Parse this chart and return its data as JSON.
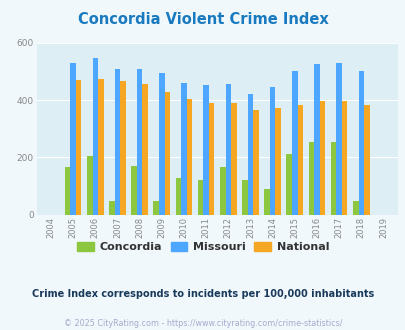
{
  "title": "Concordia Violent Crime Index",
  "title_color": "#1a7abf",
  "years": [
    2004,
    2005,
    2006,
    2007,
    2008,
    2009,
    2010,
    2011,
    2012,
    2013,
    2014,
    2015,
    2016,
    2017,
    2018,
    2019
  ],
  "concordia": [
    0,
    165,
    205,
    47,
    170,
    47,
    128,
    120,
    165,
    120,
    88,
    212,
    252,
    255,
    47,
    0
  ],
  "missouri": [
    0,
    530,
    547,
    510,
    510,
    495,
    460,
    452,
    457,
    420,
    447,
    500,
    525,
    530,
    503,
    0
  ],
  "national": [
    0,
    470,
    473,
    467,
    458,
    430,
    405,
    390,
    390,
    365,
    372,
    383,
    398,
    398,
    382,
    0
  ],
  "concordia_color": "#8dc63f",
  "missouri_color": "#4da6ff",
  "national_color": "#f5a623",
  "bg_color": "#f0f8fc",
  "plot_bg_color": "#ddeef5",
  "ylabel_max": 600,
  "yticks": [
    0,
    200,
    400,
    600
  ],
  "grid_color": "#ffffff",
  "subtitle": "Crime Index corresponds to incidents per 100,000 inhabitants",
  "subtitle_color": "#1a3a5c",
  "copyright": "© 2025 CityRating.com - https://www.cityrating.com/crime-statistics/",
  "copyright_color": "#aaaacc",
  "legend_labels": [
    "Concordia",
    "Missouri",
    "National"
  ],
  "tick_color": "#888888",
  "bar_width": 0.25
}
